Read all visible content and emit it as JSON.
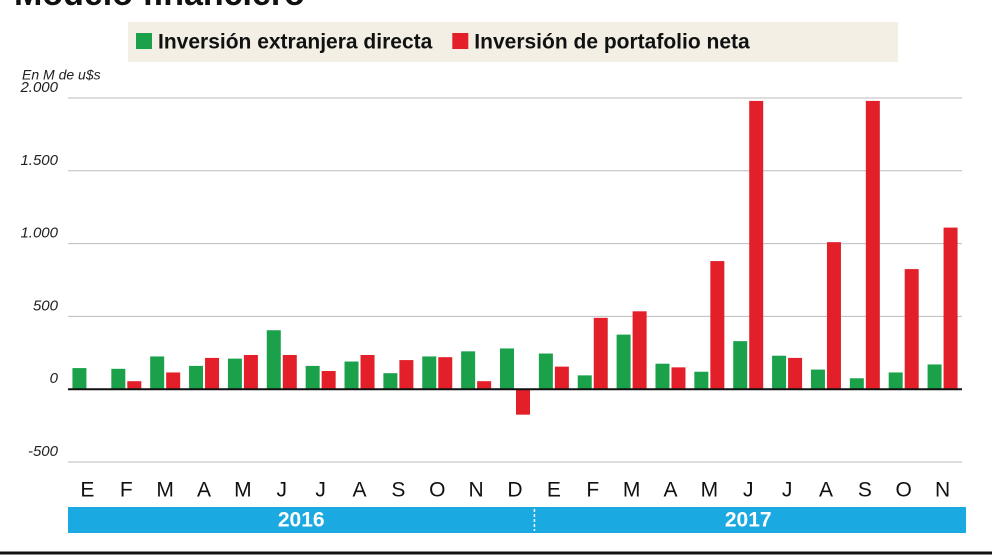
{
  "chart_data": {
    "type": "bar",
    "title": "Modelo financiero",
    "y_axis_label": "En M de u$s",
    "categories": [
      "E",
      "F",
      "M",
      "A",
      "M",
      "J",
      "J",
      "A",
      "S",
      "O",
      "N",
      "D",
      "E",
      "F",
      "M",
      "A",
      "M",
      "J",
      "J",
      "A",
      "S",
      "O",
      "N"
    ],
    "groups": [
      {
        "label": "2016",
        "span": 12
      },
      {
        "label": "2017",
        "span": 11
      }
    ],
    "series": [
      {
        "name": "Inversión extranjera directa",
        "color": "#1aa14a",
        "values": [
          145,
          140,
          225,
          160,
          210,
          405,
          160,
          190,
          110,
          225,
          260,
          280,
          245,
          95,
          375,
          175,
          120,
          330,
          230,
          135,
          75,
          115,
          170
        ]
      },
      {
        "name": "Inversión de portafolio neta",
        "color": "#e3202a",
        "values": [
          null,
          55,
          115,
          215,
          235,
          235,
          125,
          235,
          200,
          220,
          55,
          -175,
          155,
          490,
          535,
          150,
          880,
          1980,
          215,
          1010,
          1980,
          825,
          1110
        ]
      }
    ],
    "ylim": [
      -500,
      2000
    ],
    "yticks": [
      -500,
      0,
      500,
      {
        "value": 1000,
        "label": "1.000"
      },
      {
        "value": 1500,
        "label": "1.500"
      },
      {
        "value": 2000,
        "label": "2.000"
      }
    ],
    "grid": true
  }
}
